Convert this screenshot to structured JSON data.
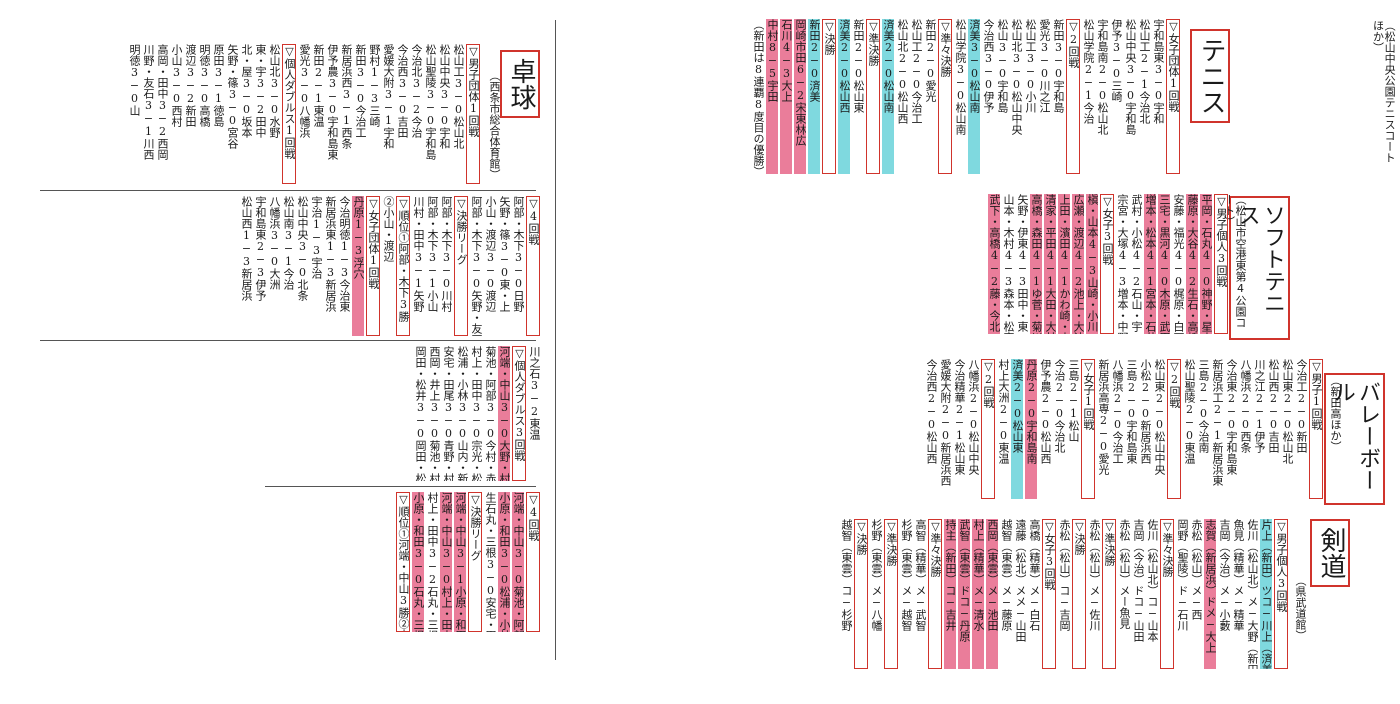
{
  "sections": {
    "table_tennis": {
      "title": "卓球",
      "venue": "（西条市総合体育館）",
      "rows": [
        [
          "▽男子団体1回戦",
          "松山工3−0松山北",
          "松山中央3−0宇和",
          "松山聖陵3−0宇和島",
          "今治北3−2今治",
          "今治西3−0吉田",
          "愛媛大附3−1宇和",
          "野村1−3三崎",
          "新田3−0今治工",
          "新居浜西3−1西条",
          "伊予農3−0宇和島東",
          "新田2−1東温",
          "愛光3−0八幡浜",
          "▽個人ダブルス1回戦",
          "松山北3−0水野",
          "東・宇3−2田中",
          "北・屋3−0坂本",
          "矢野・篠3−0宮谷",
          "原田3−1徳島",
          "明徳3−0高橋",
          "渡辺3−2新田",
          "小山3−0西村",
          "高岡・田中3−2西岡",
          "川野・友石3−1川西",
          "明徳3−0山"
        ],
        [
          "▽4回戦",
          "阿部・木下3−0日野",
          "矢野・篠3−0東・上",
          "小山・渡辺3−0渡辺",
          "阿部・木下3−0矢野・友石",
          "▽決勝リーグ",
          "阿部・木下3−0川村",
          "阿部・木下3−1小山",
          "川村・田中3−1矢野",
          "▽順位①阿部・木下3勝",
          "②小山・渡辺",
          "▽女子団体1回戦",
          "丹原1−3浮穴",
          "今治明徳1−3今治東",
          "新居浜東1−3新居浜",
          "宇治1−3宇治",
          "松山中央3−0北条",
          "松山南3−1今治",
          "八幡浜3−0大洲",
          "宇和島東2−3伊予",
          "松山西1−3新居浜"
        ],
        [
          "川之石3−2東温",
          "▽個人ダブルス3回戦",
          "河端・中山3−0大野・村上",
          "菊池・阿部3−0今村・赤坂",
          "村上・田中3−0宗光・松本",
          "松浦・小林3−0山内・新谷",
          "安宅・田尾3−0青野・村上",
          "西岡・井上3−0菊池・村上",
          "岡田・松井3−0岡田・松井"
        ],
        [
          "▽4回戦",
          "河端・中山3−0菊池・阿部",
          "小原・和田3−0松浦・小林",
          "生石丸・三根3−0安宅・田尾",
          "▽決勝リーグ",
          "河端・中山3−1小原・和田",
          "河端・中山3−0村上・田中",
          "村上・田中3−2石丸・三根",
          "小原・和田3−0石丸・三根",
          "▽順位①河端・中山3勝②小原・和田2勝1敗③村上・田中1勝2敗④石丸・三根0勝3敗"
        ]
      ]
    },
    "tennis": {
      "title": "テニス",
      "venue": "（松山中央公園テニスコートほか）",
      "rows": [
        [
          "▽女子団体1回戦",
          "宇和島東3−0宇和",
          "松山工2−1今治北",
          "松山中央3−0宇和島",
          "伊予3−0三崎",
          "宇和島南2−0松山北",
          "松山学院2−1今治",
          "▽2回戦",
          "新田3−0宇和島",
          "愛光3−0川之江",
          "松山工3−0小川",
          "松山北3−0松山中央",
          "松山3−0宇和島",
          "今治西3−0伊予",
          "済美3−0松山南",
          "松山学院3−0松山南"
        ],
        [
          "▽準々決勝",
          "新田2−0愛光",
          "松山工2−0今治工",
          "松山北2−0松山西",
          "済美2−0松山南",
          "▽準決勝",
          "新田2−0松山東",
          "済美2−0松山西",
          "▽決勝",
          "新田2−0済美"
        ],
        [
          "岡崎市田6−2宋東林広",
          "石川4−3大上",
          "中村8−5宇田",
          "（新田は8連覇8度目の優勝）"
        ]
      ]
    },
    "soft_tennis": {
      "title": "ソフトテニス",
      "venue": "（松山市空港東第4公園コート）",
      "rows": [
        [
          "▽男子個人3回戦",
          "平岡・石丸4−0神野・星山",
          "藤原・大谷4−2生石・高橋",
          "安藤・福光4−0梶原・白石",
          "三宅・黒河4−0木原・武田",
          "増本・松本4−1宮本・石井",
          "武村・小松4−2石山・宇",
          "宗宮・大塚4−3増本・中野"
        ],
        [
          "▽女子3回戦",
          "槇・山本4−3山崎・小川",
          "広瀬・渡辺4−2池上・大波",
          "上田・濱田4−1かわ崎・山本",
          "清家・平田4−1大田・大林",
          "高橋・森田4−1ゆ菅・菊川",
          "矢野・伊東4−3田中・東",
          "山本・木村4−3森本・松室",
          "武下・高橋4−2藤・今北"
        ]
      ]
    },
    "volleyball": {
      "title": "バレーボール",
      "venue": "（新田高ほか）",
      "rows": [
        [
          "▽男子1回戦",
          "今治工2−0新田",
          "松山東2−0松山北",
          "松山西2−0吉田",
          "川之江2−1伊予",
          "八幡浜2−0西条",
          "今治東2−0宇和島東",
          "新居浜工2−1新居浜東",
          "三島2−0今治南",
          "松山聖陵2−0東温",
          "▽2回戦",
          "松山東2−0松山中央",
          "小松2−0新居浜西",
          "三島2−0宇和島東",
          "八幡浜2−0今治工",
          "新居浜高専2−0愛光"
        ],
        [
          "▽女子1回戦",
          "三島2−1松山",
          "今治2−0今治北",
          "伊予農2−0松山西",
          "丹原2−0宇和島南",
          "済美2−0松山東",
          "村上大洲2−0東温",
          "▽2回戦",
          "八幡浜2−0松山中央",
          "今治精華2−1松山東",
          "愛媛大附2−0新居浜西",
          "今治西2−0松山西"
        ]
      ]
    },
    "kendo": {
      "title": "剣道",
      "venue": "（県武道館）",
      "rows": [
        [
          "▽男子個人3回戦",
          "片上（新田）ツコ−川上（済美）",
          "佐川（松山北）メ−大野（新田）",
          "魚見（精華）メ−精華",
          "吉岡（今治）メ−小藪",
          "志賀（新居浜）ドメ−大上",
          "赤松（松山）メ−西",
          "岡野（聖陵）ド−石川",
          "▽準々決勝",
          "佐川（松山北）コ−山本",
          "吉岡（今治）ドコ−山田",
          "赤松（松山）メー魚見",
          "▽準決勝",
          "赤松（松山）メ−佐川",
          "▽決勝",
          "赤松（松山）コ−吉岡"
        ],
        [
          "▽女子3回戦",
          "高橋（精華）メ−白石",
          "遠藤（松北）メメ−山田",
          "越智（東雲）メ−藤原",
          "西岡（東雲）メ−池田",
          "村上（精華）メ−清水",
          "武智（東雲）ドコ−丹原",
          "持主（新田）コ−吉井",
          "▽準々決勝",
          "高智（精華）メ−武智",
          "杉野（東雲）メ−越智",
          "▽準決勝",
          "杉野（東雲）メ−八幡",
          "▽決勝",
          "越智（東雲）コ−杉野"
        ]
      ]
    }
  }
}
